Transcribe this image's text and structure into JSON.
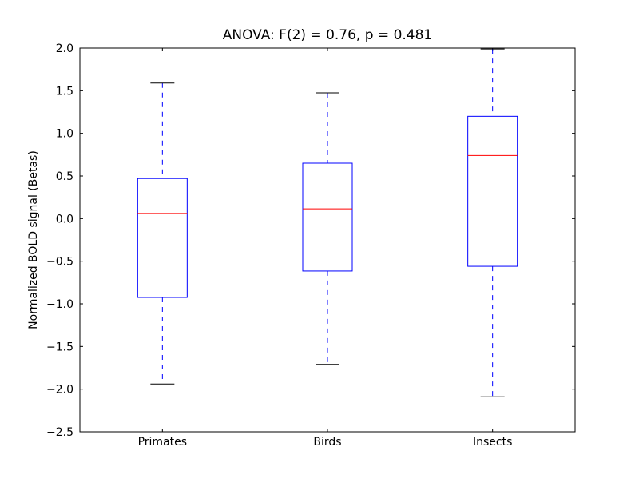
{
  "chart_data": {
    "type": "boxplot",
    "title": "ANOVA: F(2) = 0.76, p = 0.481",
    "xlabel": "",
    "ylabel": "Normalized BOLD signal (Betas)",
    "ylim": [
      -2.5,
      2.0
    ],
    "yticks": [
      -2.5,
      -2.0,
      -1.5,
      -1.0,
      -0.5,
      0.0,
      0.5,
      1.0,
      1.5,
      2.0
    ],
    "ytick_labels": [
      "−2.5",
      "−2.0",
      "−1.5",
      "−1.0",
      "−0.5",
      "0.0",
      "0.5",
      "1.0",
      "1.5",
      "2.0"
    ],
    "categories": [
      "Primates",
      "Birds",
      "Insects"
    ],
    "boxes": [
      {
        "whisker_low": -1.94,
        "q1": -0.925,
        "median": 0.06,
        "q3": 0.47,
        "whisker_high": 1.59
      },
      {
        "whisker_low": -1.71,
        "q1": -0.615,
        "median": 0.115,
        "q3": 0.65,
        "whisker_high": 1.475
      },
      {
        "whisker_low": -2.09,
        "q1": -0.56,
        "median": 0.74,
        "q3": 1.2,
        "whisker_high": 1.99
      }
    ],
    "grid": false,
    "colors": {
      "box": "#0000ff",
      "median": "#ff0000",
      "cap": "#000000"
    }
  }
}
